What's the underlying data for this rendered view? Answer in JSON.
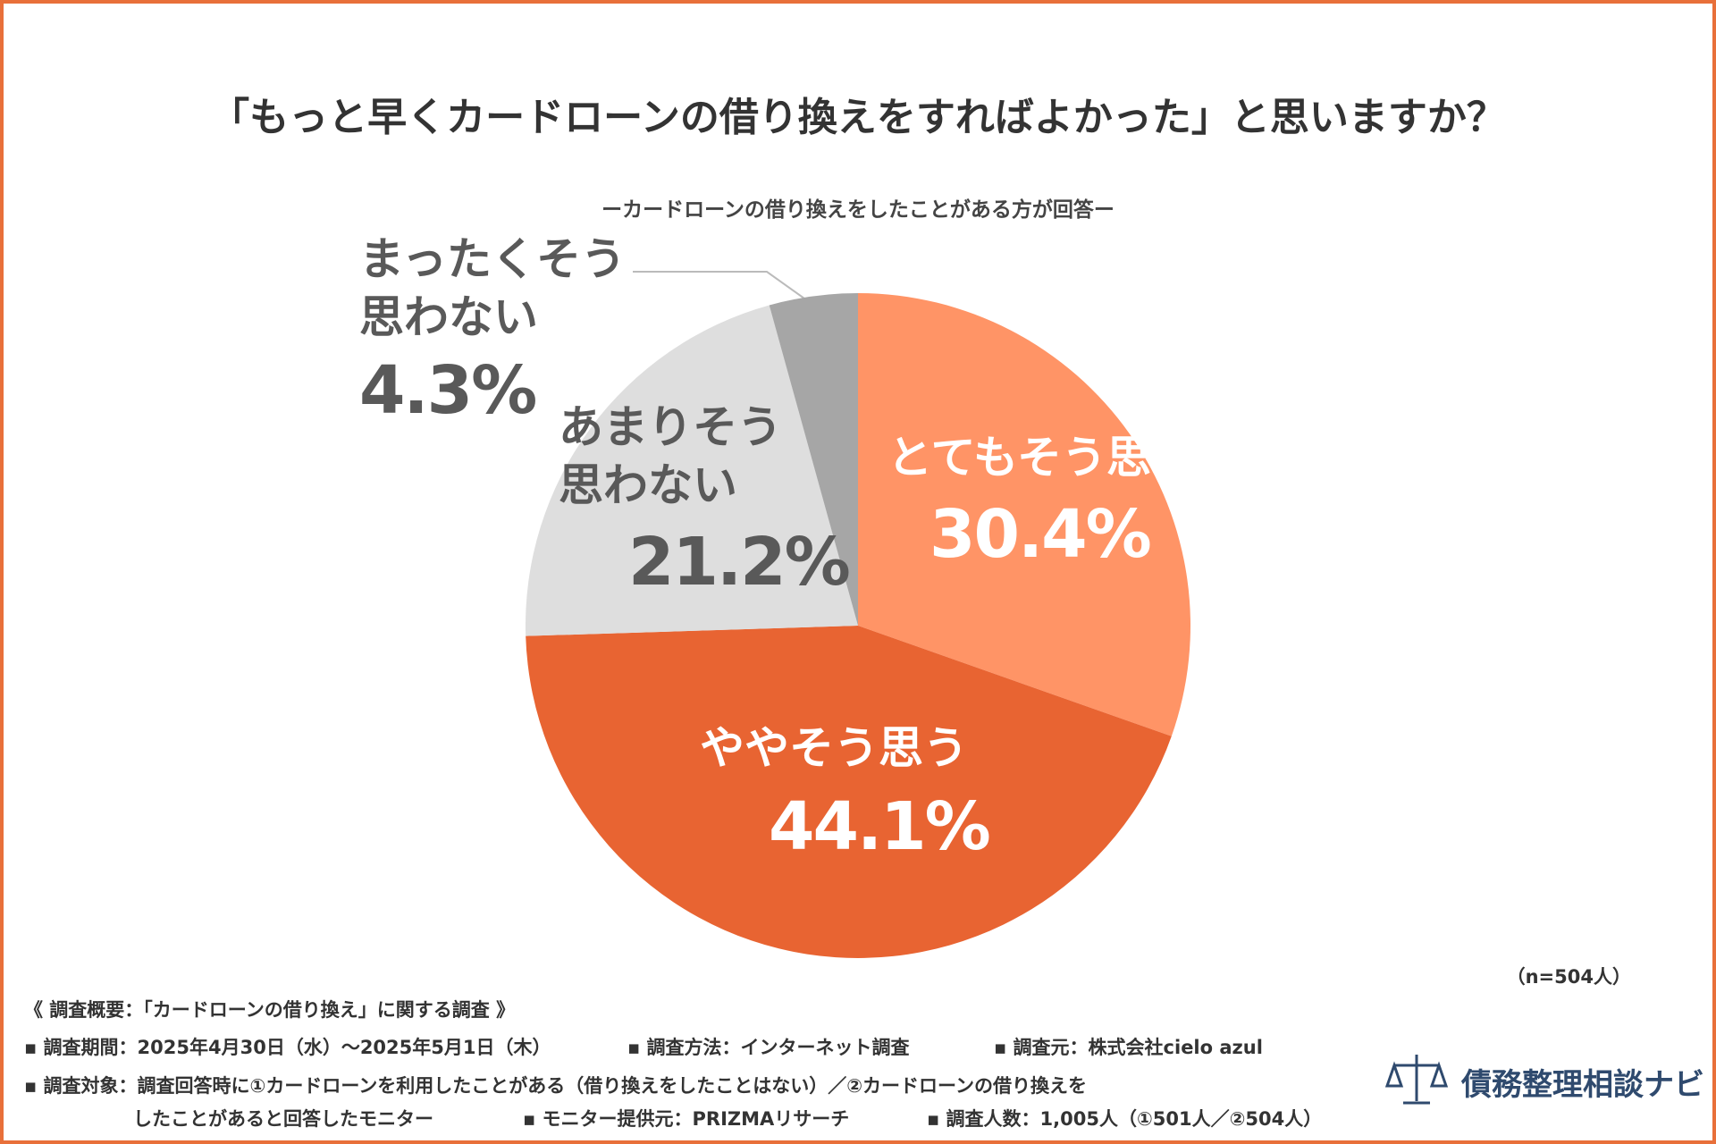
{
  "chart_data": {
    "type": "pie",
    "title": "「もっと早くカードローンの借り換えをすればよかった」と思いますか？",
    "subtitle": "ーカードローンの借り換えをしたことがある方が回答ー",
    "categories": [
      "とてもそう思う",
      "ややそう思う",
      "あまりそう思わない",
      "まったくそう思わない"
    ],
    "values": [
      30.4,
      44.1,
      21.2,
      4.3
    ],
    "value_labels": [
      "30.4%",
      "44.1%",
      "21.2%",
      "4.3%"
    ],
    "colors": [
      "#ff9466",
      "#e86432",
      "#dedede",
      "#a6a6a6"
    ],
    "note": "（n=504人）"
  },
  "survey": {
    "heading": "《 調査概要：「カードローンの借り換え」に関する調査 》",
    "rows": [
      [
        "▪ 調査期間：2025年4月30日（水）～2025年5月1日（木）",
        "▪ 調査方法：インターネット調査",
        "▪ 調査元：株式会社cielo azul"
      ],
      [
        "▪ 調査対象：調査回答時に①カードローンを利用したことがある（借り換えをしたことはない）／②カードローンの借り換えを"
      ],
      [
        "したことがあると回答したモニター",
        "▪ モニター提供元：PRIZMAリサーチ",
        "▪ 調査人数：1,005人（①501人／②504人）"
      ]
    ]
  },
  "brand": "債務整理相談ナビ"
}
